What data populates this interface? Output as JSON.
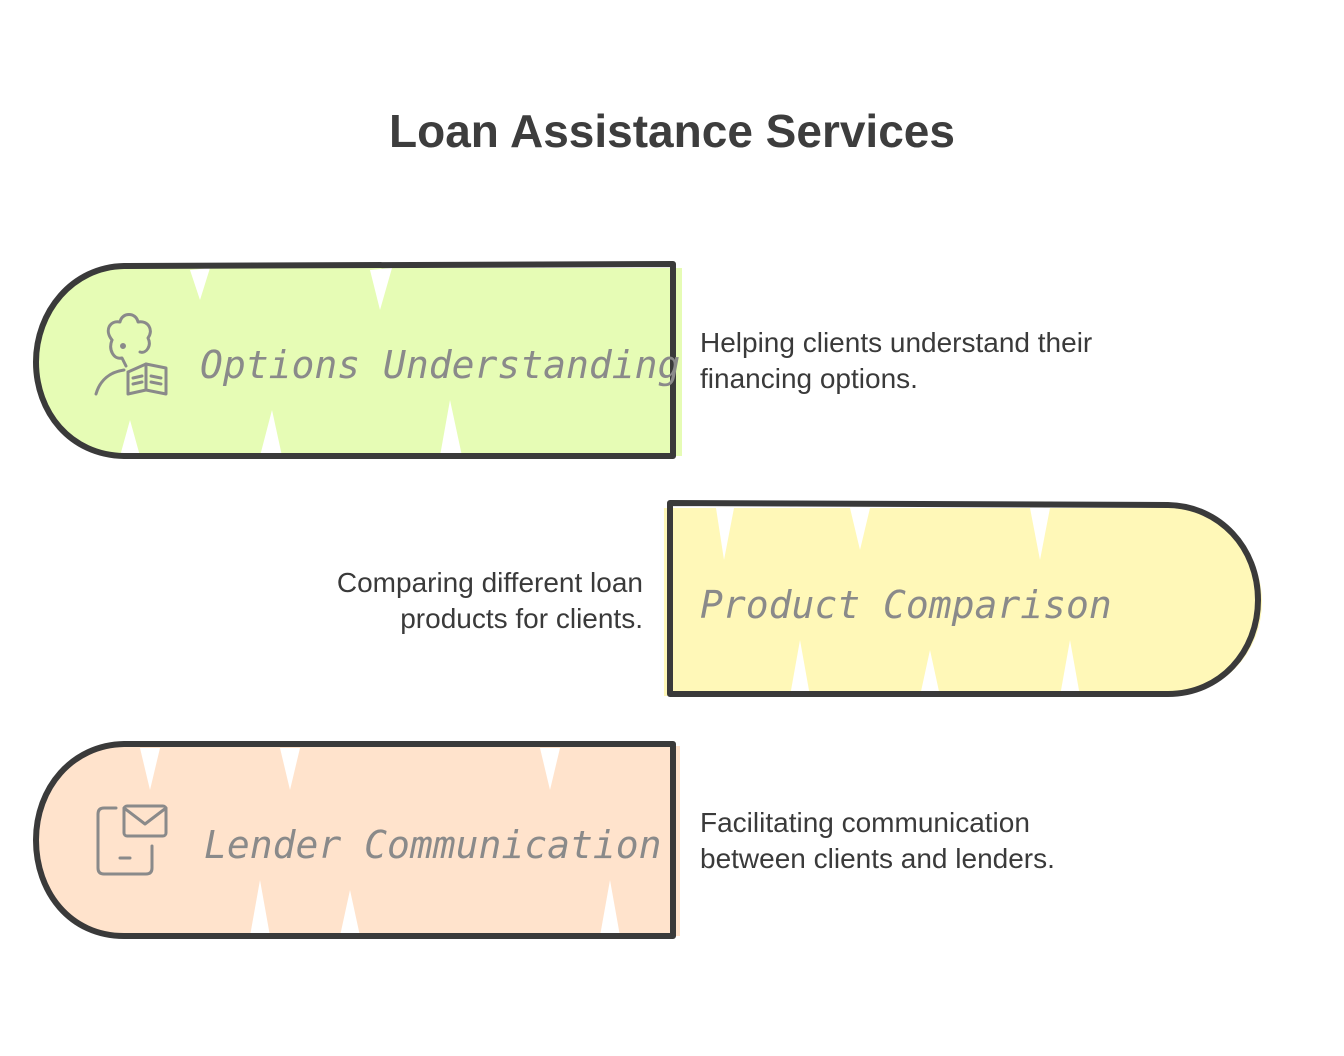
{
  "title": "Loan Assistance Services",
  "items": [
    {
      "label": "Options Understanding",
      "icon": "reader-book-icon",
      "fill": "#e6fcb5",
      "description_lines": [
        "Helping clients understand their",
        "financing options."
      ]
    },
    {
      "label": "Product Comparison",
      "icon": "",
      "fill": "#fff8b8",
      "description_lines": [
        "Comparing different loan",
        "products for clients."
      ]
    },
    {
      "label": "Lender Communication",
      "icon": "mobile-mail-icon",
      "fill": "#ffe3cc",
      "description_lines": [
        "Facilitating communication",
        "between clients and lenders."
      ]
    }
  ],
  "colors": {
    "outline": "#3a3a3a",
    "label": "#8a8a8a",
    "icon": "#8a8a8a"
  }
}
